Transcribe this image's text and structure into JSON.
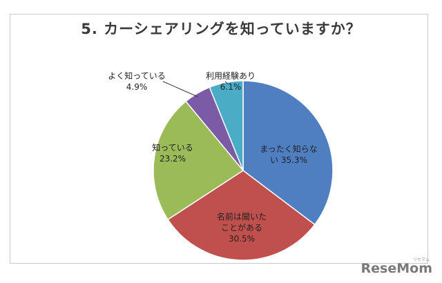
{
  "chart_data": {
    "type": "pie",
    "title": "5. カーシェアリングを知っていますか？",
    "slices": [
      {
        "label_lines": [
          "まったく知らな",
          "い 35.3%"
        ],
        "value": 35.3,
        "color": "#4f7fc1"
      },
      {
        "label_lines": [
          "名前は聞いた",
          "ことがある",
          "30.5%"
        ],
        "value": 30.5,
        "color": "#c0504d"
      },
      {
        "label_lines": [
          "知っている",
          "23.2%"
        ],
        "value": 23.2,
        "color": "#9bbb59"
      },
      {
        "label_lines": [
          "よく知っている",
          "4.9%"
        ],
        "value": 4.9,
        "color": "#7b5aa6"
      },
      {
        "label_lines": [
          "利用経験あり",
          "6.1%"
        ],
        "value": 6.1,
        "color": "#4bacc6"
      }
    ]
  },
  "watermark": {
    "logo_text": "ReseMom",
    "sub_text": "リセマム"
  }
}
